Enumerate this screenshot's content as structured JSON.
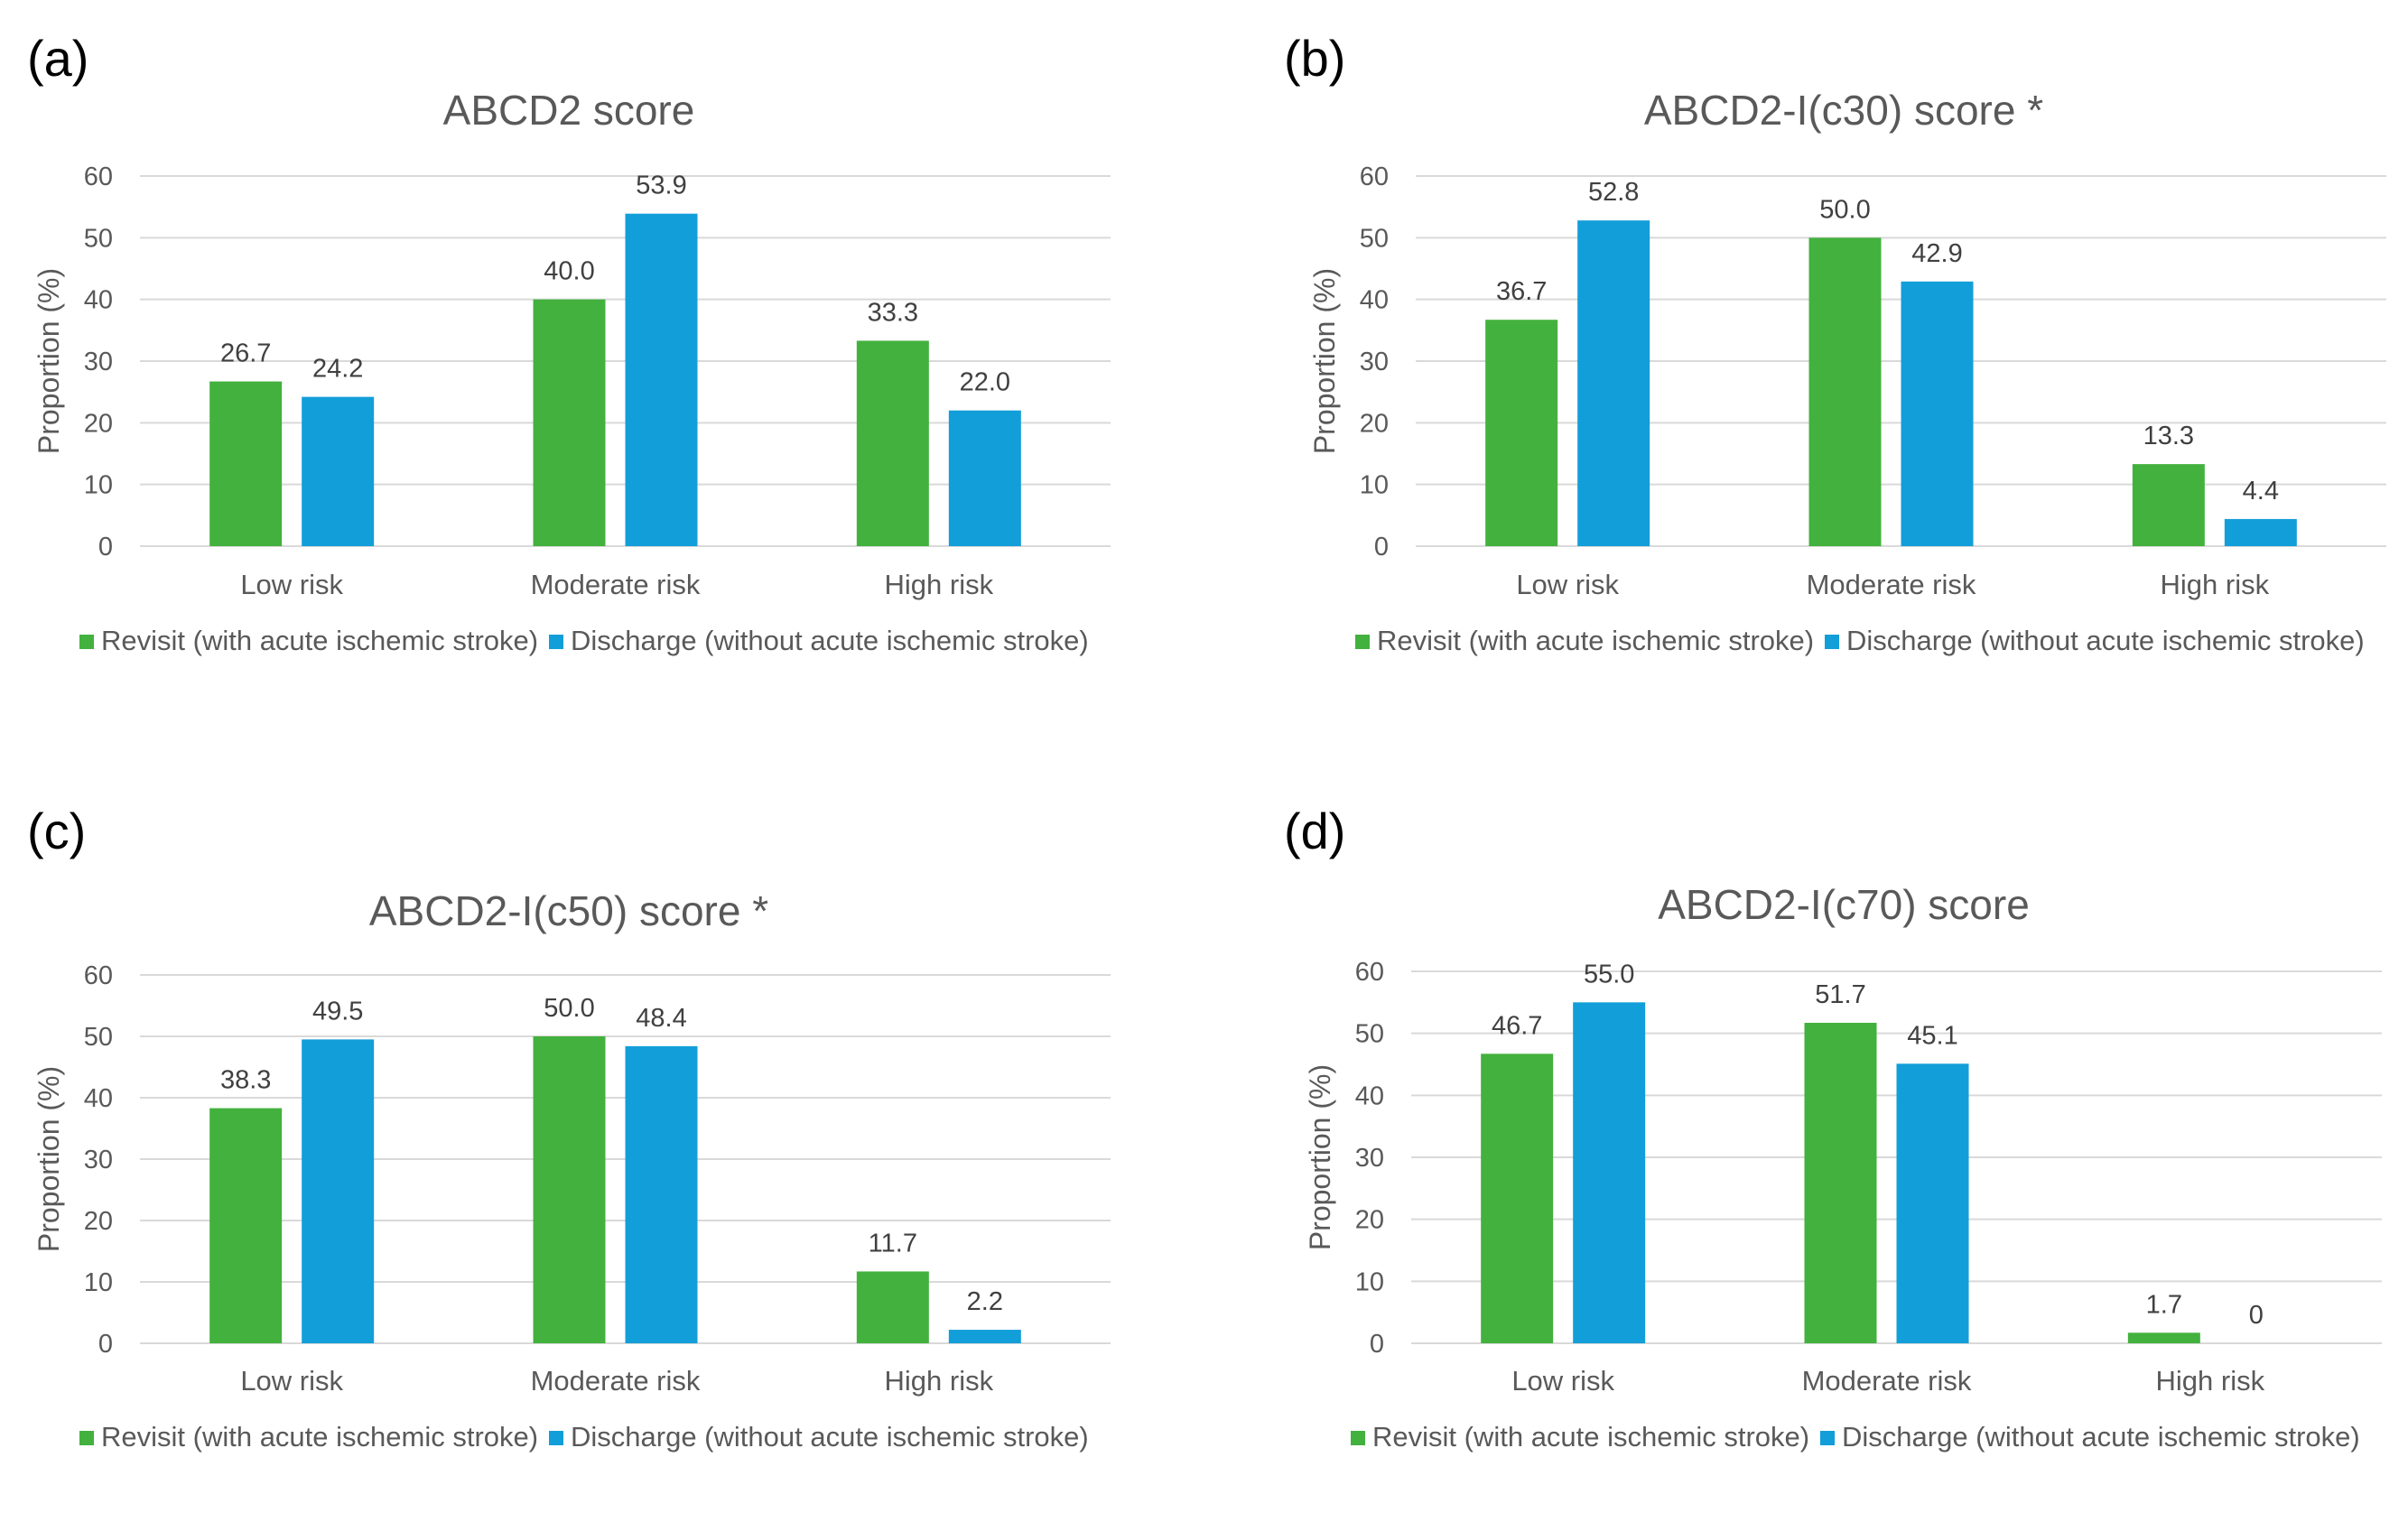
{
  "chart_data": [
    {
      "type": "bar",
      "panel": "(a)",
      "title": "ABCD2 score",
      "xlabel": "",
      "ylabel": "Proportion (%)",
      "ylim": [
        0,
        60
      ],
      "yticks": [
        "0",
        "10",
        "20",
        "30",
        "40",
        "50",
        "60"
      ],
      "grid": true,
      "legend_position": "bottom",
      "categories": [
        "Low risk",
        "Moderate risk",
        "High risk"
      ],
      "series": [
        {
          "name": "Revisit (with acute ischemic stroke)",
          "color": "#43b13e",
          "values": [
            26.7,
            40.0,
            33.3
          ],
          "labels": [
            "26.7",
            "40.0",
            "33.3"
          ]
        },
        {
          "name": "Discharge (without acute ischemic stroke)",
          "color": "#129ed9",
          "values": [
            24.2,
            53.9,
            22.0
          ],
          "labels": [
            "24.2",
            "53.9",
            "22.0"
          ]
        }
      ]
    },
    {
      "type": "bar",
      "panel": "(b)",
      "title": "ABCD2-I(c30) score *",
      "xlabel": "",
      "ylabel": "Proportion (%)",
      "ylim": [
        0,
        60
      ],
      "yticks": [
        "0",
        "10",
        "20",
        "30",
        "40",
        "50",
        "60"
      ],
      "grid": true,
      "legend_position": "bottom",
      "categories": [
        "Low risk",
        "Moderate risk",
        "High risk"
      ],
      "series": [
        {
          "name": "Revisit (with acute ischemic stroke)",
          "color": "#43b13e",
          "values": [
            36.7,
            50.0,
            13.3
          ],
          "labels": [
            "36.7",
            "50.0",
            "13.3"
          ]
        },
        {
          "name": "Discharge (without acute ischemic stroke)",
          "color": "#129ed9",
          "values": [
            52.8,
            42.9,
            4.4
          ],
          "labels": [
            "52.8",
            "42.9",
            "4.4"
          ]
        }
      ]
    },
    {
      "type": "bar",
      "panel": "(c)",
      "title": "ABCD2-I(c50) score *",
      "xlabel": "",
      "ylabel": "Proportion (%)",
      "ylim": [
        0,
        60
      ],
      "yticks": [
        "0",
        "10",
        "20",
        "30",
        "40",
        "50",
        "60"
      ],
      "grid": true,
      "legend_position": "bottom",
      "categories": [
        "Low risk",
        "Moderate risk",
        "High risk"
      ],
      "series": [
        {
          "name": "Revisit (with acute ischemic stroke)",
          "color": "#43b13e",
          "values": [
            38.3,
            50.0,
            11.7
          ],
          "labels": [
            "38.3",
            "50.0",
            "11.7"
          ]
        },
        {
          "name": "Discharge (without acute ischemic stroke)",
          "color": "#129ed9",
          "values": [
            49.5,
            48.4,
            2.2
          ],
          "labels": [
            "49.5",
            "48.4",
            "2.2"
          ]
        }
      ]
    },
    {
      "type": "bar",
      "panel": "(d)",
      "title": "ABCD2-I(c70) score",
      "xlabel": "",
      "ylabel": "Proportion (%)",
      "ylim": [
        0,
        60
      ],
      "yticks": [
        "0",
        "10",
        "20",
        "30",
        "40",
        "50",
        "60"
      ],
      "grid": true,
      "legend_position": "bottom",
      "categories": [
        "Low risk",
        "Moderate risk",
        "High risk"
      ],
      "series": [
        {
          "name": "Revisit (with acute ischemic stroke)",
          "color": "#43b13e",
          "values": [
            46.7,
            51.7,
            1.7
          ],
          "labels": [
            "46.7",
            "51.7",
            "1.7"
          ]
        },
        {
          "name": "Discharge (without acute ischemic stroke)",
          "color": "#129ed9",
          "values": [
            55.0,
            45.1,
            0
          ],
          "labels": [
            "55.0",
            "45.1",
            "0"
          ]
        }
      ]
    }
  ]
}
